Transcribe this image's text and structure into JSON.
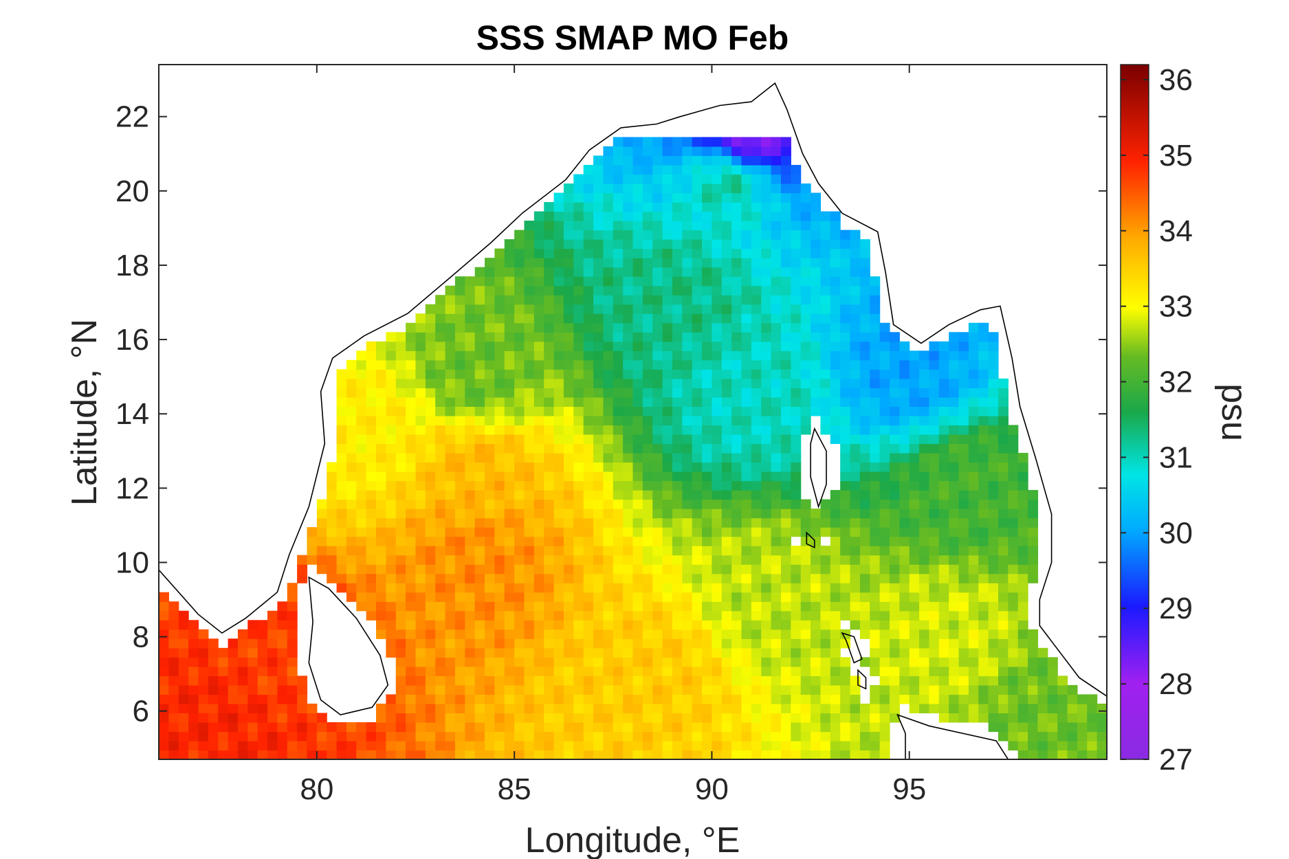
{
  "chart_data": {
    "type": "heatmap",
    "title": "SSS SMAP MO Feb",
    "xlabel": "Longitude, °E",
    "ylabel": "Latitude, °N",
    "colorbar_label": "psu",
    "xlim": [
      76,
      100
    ],
    "ylim": [
      4.7,
      23.4
    ],
    "clim": [
      27,
      36.2
    ],
    "grid": false,
    "colormap": "jet-like (purple-blue-cyan-green-yellow-orange-red-darkred)",
    "x_ticks": [
      {
        "v": 80,
        "label": "80"
      },
      {
        "v": 85,
        "label": "85"
      },
      {
        "v": 90,
        "label": "90"
      },
      {
        "v": 95,
        "label": "95"
      }
    ],
    "y_ticks": [
      {
        "v": 6,
        "label": "6"
      },
      {
        "v": 8,
        "label": "8"
      },
      {
        "v": 10,
        "label": "10"
      },
      {
        "v": 12,
        "label": "12"
      },
      {
        "v": 14,
        "label": "14"
      },
      {
        "v": 16,
        "label": "16"
      },
      {
        "v": 18,
        "label": "18"
      },
      {
        "v": 20,
        "label": "20"
      },
      {
        "v": 22,
        "label": "22"
      }
    ],
    "colorbar_ticks": [
      {
        "v": 27,
        "label": "27"
      },
      {
        "v": 28,
        "label": "28"
      },
      {
        "v": 29,
        "label": "29"
      },
      {
        "v": 30,
        "label": "30"
      },
      {
        "v": 31,
        "label": "31"
      },
      {
        "v": 32,
        "label": "32"
      },
      {
        "v": 33,
        "label": "33"
      },
      {
        "v": 34,
        "label": "34"
      },
      {
        "v": 35,
        "label": "35"
      },
      {
        "v": 36,
        "label": "36"
      }
    ],
    "approx_field_anchors_psu": [
      {
        "lon": 77.5,
        "lat": 5.5,
        "sss": 35.0
      },
      {
        "lon": 79.0,
        "lat": 7.5,
        "sss": 34.8
      },
      {
        "lon": 84.0,
        "lat": 10.0,
        "sss": 34.2
      },
      {
        "lon": 84.0,
        "lat": 12.5,
        "sss": 33.8
      },
      {
        "lon": 81.5,
        "lat": 13.5,
        "sss": 33.2
      },
      {
        "lon": 84.0,
        "lat": 15.0,
        "sss": 32.3
      },
      {
        "lon": 88.5,
        "lat": 7.0,
        "sss": 33.6
      },
      {
        "lon": 89.0,
        "lat": 17.0,
        "sss": 31.3
      },
      {
        "lon": 91.0,
        "lat": 14.5,
        "sss": 31.0
      },
      {
        "lon": 90.5,
        "lat": 20.5,
        "sss": 31.4
      },
      {
        "lon": 90.8,
        "lat": 21.3,
        "sss": 27.8
      },
      {
        "lon": 95.0,
        "lat": 15.2,
        "sss": 30.0
      },
      {
        "lon": 96.5,
        "lat": 12.0,
        "sss": 32.0
      },
      {
        "lon": 96.0,
        "lat": 8.0,
        "sss": 32.8
      },
      {
        "lon": 91.5,
        "lat": 9.0,
        "sss": 32.7
      },
      {
        "lon": 98.5,
        "lat": 6.0,
        "sss": 32.3
      }
    ]
  }
}
